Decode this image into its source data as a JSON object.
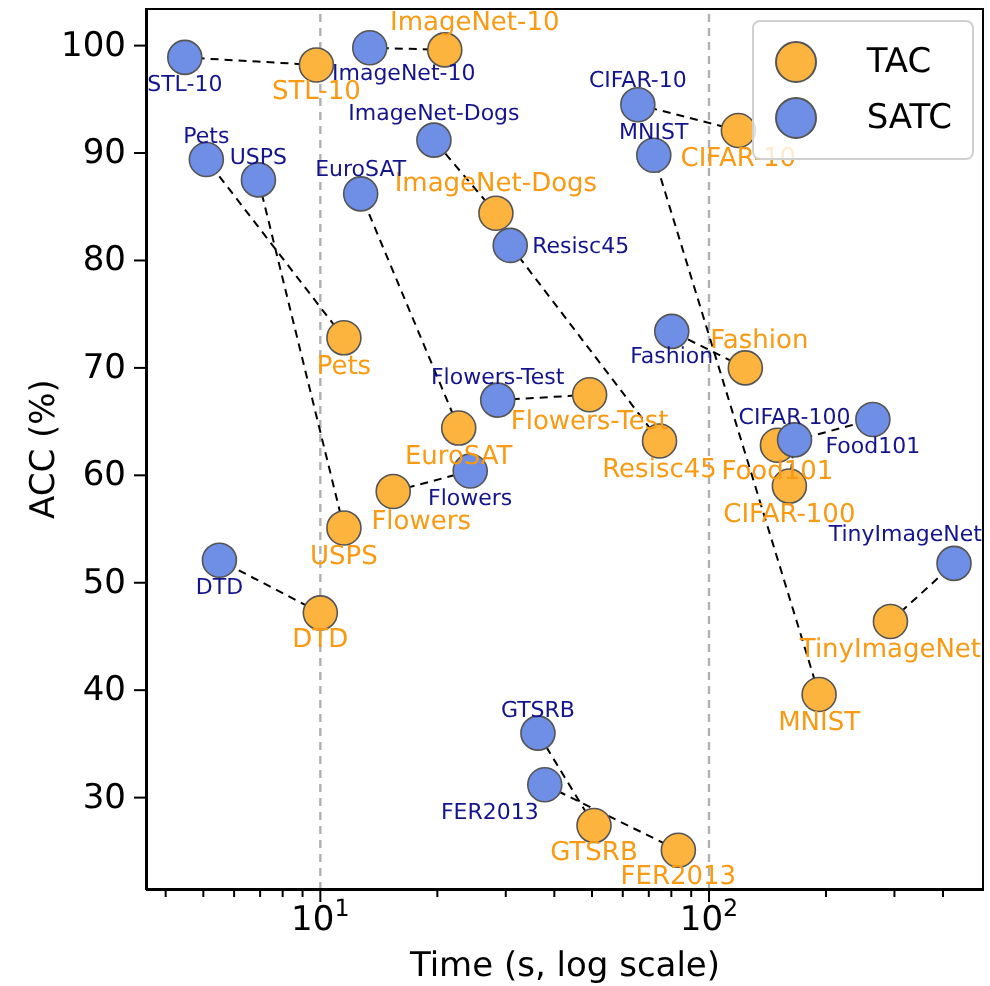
{
  "chart_data": {
    "type": "scatter",
    "xlabel": "Time (s, log scale)",
    "ylabel": "ACC (%)",
    "log": "x",
    "grid": false,
    "legend": "top right",
    "xlim": [
      3.56,
      510
    ],
    "ylim": [
      21.4,
      103.5
    ],
    "xticks": [
      {
        "value": 4,
        "label": null
      },
      {
        "value": 5,
        "label": null
      },
      {
        "value": 6,
        "label": null
      },
      {
        "value": 7,
        "label": null
      },
      {
        "value": 8,
        "label": null
      },
      {
        "value": 9,
        "label": null
      },
      {
        "value": 10,
        "label": "10$^{1}$"
      },
      {
        "value": 20,
        "label": null
      },
      {
        "value": 30,
        "label": null
      },
      {
        "value": 40,
        "label": null
      },
      {
        "value": 50,
        "label": null
      },
      {
        "value": 60,
        "label": null
      },
      {
        "value": 70,
        "label": null
      },
      {
        "value": 80,
        "label": null
      },
      {
        "value": 90,
        "label": null
      },
      {
        "value": 100,
        "label": "10$^{2}$"
      },
      {
        "value": 200,
        "label": null
      },
      {
        "value": 300,
        "label": null
      },
      {
        "value": 400,
        "label": null
      }
    ],
    "yticks": [
      30,
      40,
      50,
      60,
      70,
      80,
      90,
      100
    ],
    "ref_lines": [
      {
        "axis": "x",
        "value": 10,
        "color": "#b0b0b0",
        "line_style": "dashed"
      },
      {
        "axis": "x",
        "value": 100,
        "color": "#b0b0b0",
        "line_style": "dashed"
      }
    ],
    "series": [
      {
        "name": "TAC",
        "type": "scatter",
        "marker": "circle",
        "color": "#fdb43f",
        "x": [
          9.77,
          20.9,
          28.3,
          11.5,
          11.5,
          22.7,
          15.4,
          49.3,
          74.6,
          119,
          192,
          124,
          150,
          161,
          293,
          50.6,
          83.4,
          10
        ],
        "values": [
          98.2,
          99.6,
          84.4,
          72.8,
          55.1,
          64.4,
          58.5,
          67.5,
          63.2,
          92.1,
          39.6,
          70.0,
          62.8,
          59.0,
          46.4,
          27.4,
          25.1,
          47.2
        ]
      },
      {
        "name": "SATC",
        "type": "scatter",
        "marker": "circle",
        "color": "#6f8fe6",
        "x": [
          4.48,
          13.4,
          19.6,
          5.09,
          6.93,
          12.7,
          24.3,
          28.6,
          30.8,
          65.6,
          72.1,
          80.2,
          264,
          166,
          427,
          36.3,
          37.8,
          5.5
        ],
        "values": [
          98.9,
          99.8,
          91.2,
          89.4,
          87.5,
          86.2,
          60.4,
          67.0,
          81.4,
          94.5,
          89.8,
          73.4,
          65.2,
          63.3,
          51.8,
          36.0,
          31.2,
          52.1
        ]
      },
      {
        "type": "line",
        "color": "#000000",
        "line_style": "dashed",
        "x": [
          9.77,
          4.48
        ],
        "values": [
          98.2,
          98.9
        ]
      },
      {
        "type": "line",
        "color": "#000000",
        "line_style": "dashed",
        "x": [
          20.9,
          13.4
        ],
        "values": [
          99.6,
          99.8
        ]
      },
      {
        "type": "line",
        "color": "#000000",
        "line_style": "dashed",
        "x": [
          28.3,
          19.6
        ],
        "values": [
          84.4,
          91.2
        ]
      },
      {
        "type": "line",
        "color": "#000000",
        "line_style": "dashed",
        "x": [
          11.5,
          5.09
        ],
        "values": [
          72.8,
          89.4
        ]
      },
      {
        "type": "line",
        "color": "#000000",
        "line_style": "dashed",
        "x": [
          11.5,
          6.93
        ],
        "values": [
          55.1,
          87.5
        ]
      },
      {
        "type": "line",
        "color": "#000000",
        "line_style": "dashed",
        "x": [
          22.7,
          12.7
        ],
        "values": [
          64.4,
          86.2
        ]
      },
      {
        "type": "line",
        "color": "#000000",
        "line_style": "dashed",
        "x": [
          15.4,
          24.3
        ],
        "values": [
          58.5,
          60.4
        ]
      },
      {
        "type": "line",
        "color": "#000000",
        "line_style": "dashed",
        "x": [
          49.3,
          28.6
        ],
        "values": [
          67.5,
          67.0
        ]
      },
      {
        "type": "line",
        "color": "#000000",
        "line_style": "dashed",
        "x": [
          74.6,
          30.8
        ],
        "values": [
          63.2,
          81.4
        ]
      },
      {
        "type": "line",
        "color": "#000000",
        "line_style": "dashed",
        "x": [
          119,
          65.6
        ],
        "values": [
          92.1,
          94.5
        ]
      },
      {
        "type": "line",
        "color": "#000000",
        "line_style": "dashed",
        "x": [
          192,
          72.1
        ],
        "values": [
          39.6,
          89.8
        ]
      },
      {
        "type": "line",
        "color": "#000000",
        "line_style": "dashed",
        "x": [
          124,
          80.2
        ],
        "values": [
          70.0,
          73.4
        ]
      },
      {
        "type": "line",
        "color": "#000000",
        "line_style": "dashed",
        "x": [
          150,
          264
        ],
        "values": [
          62.8,
          65.2
        ]
      },
      {
        "type": "line",
        "color": "#000000",
        "line_style": "dashed",
        "x": [
          161,
          166
        ],
        "values": [
          59.0,
          63.3
        ]
      },
      {
        "type": "line",
        "color": "#000000",
        "line_style": "dashed",
        "x": [
          293,
          427
        ],
        "values": [
          46.4,
          51.8
        ]
      },
      {
        "type": "line",
        "color": "#000000",
        "line_style": "dashed",
        "x": [
          50.6,
          36.3
        ],
        "values": [
          27.4,
          36.0
        ]
      },
      {
        "type": "line",
        "color": "#000000",
        "line_style": "dashed",
        "x": [
          83.4,
          37.8
        ],
        "values": [
          25.1,
          31.2
        ]
      },
      {
        "type": "line",
        "color": "#000000",
        "line_style": "dashed",
        "x": [
          10,
          5.5
        ],
        "values": [
          47.2,
          52.1
        ]
      }
    ],
    "annotations": [
      {
        "text": "STL-10",
        "x": 9.77,
        "y": 98.2
      },
      {
        "text": "ImageNet-10",
        "x": 20.9,
        "y": 99.6
      },
      {
        "text": "ImageNet-Dogs",
        "x": 28.3,
        "y": 84.4
      },
      {
        "text": "Pets",
        "x": 11.5,
        "y": 72.8
      },
      {
        "text": "USPS",
        "x": 11.5,
        "y": 55.1
      },
      {
        "text": "EuroSAT",
        "x": 22.7,
        "y": 64.4
      },
      {
        "text": "Flowers",
        "x": 15.4,
        "y": 58.5
      },
      {
        "text": "Flowers-Test",
        "x": 49.3,
        "y": 67.5
      },
      {
        "text": "Resisc45",
        "x": 74.6,
        "y": 63.2
      },
      {
        "text": "CIFAR-10",
        "x": 119,
        "y": 92.1
      },
      {
        "text": "MNIST",
        "x": 192,
        "y": 39.6
      },
      {
        "text": "Fashion",
        "x": 124,
        "y": 70.0
      },
      {
        "text": "Food101",
        "x": 150,
        "y": 62.8
      },
      {
        "text": "CIFAR-100",
        "x": 161,
        "y": 59.0
      },
      {
        "text": "TinyImageNet",
        "x": 293,
        "y": 46.4
      },
      {
        "text": "GTSRB",
        "x": 50.6,
        "y": 27.4
      },
      {
        "text": "FER2013",
        "x": 83.4,
        "y": 25.1
      },
      {
        "text": "DTD",
        "x": 10,
        "y": 47.2
      },
      {
        "text": "STL-10",
        "x": 4.48,
        "y": 98.9
      },
      {
        "text": "ImageNet-10",
        "x": 13.4,
        "y": 99.8
      },
      {
        "text": "ImageNet-Dogs",
        "x": 19.6,
        "y": 91.2
      },
      {
        "text": "Pets",
        "x": 5.09,
        "y": 89.4
      },
      {
        "text": "USPS",
        "x": 6.93,
        "y": 87.5
      },
      {
        "text": "EuroSAT",
        "x": 12.7,
        "y": 86.2
      },
      {
        "text": "Flowers",
        "x": 24.3,
        "y": 60.4
      },
      {
        "text": "Flowers-Test",
        "x": 28.6,
        "y": 67.0
      },
      {
        "text": "Resisc45",
        "x": 30.8,
        "y": 81.4
      },
      {
        "text": "CIFAR-10",
        "x": 65.6,
        "y": 94.5
      },
      {
        "text": "MNIST",
        "x": 72.1,
        "y": 89.8
      },
      {
        "text": "Fashion",
        "x": 80.2,
        "y": 73.4
      },
      {
        "text": "Food101",
        "x": 264,
        "y": 65.2
      },
      {
        "text": "CIFAR-100",
        "x": 166,
        "y": 63.3
      },
      {
        "text": "TinyImageNet",
        "x": 427,
        "y": 51.8
      },
      {
        "text": "GTSRB",
        "x": 36.3,
        "y": 36.0
      },
      {
        "text": "FER2013",
        "x": 37.8,
        "y": 31.2
      },
      {
        "text": "DTD",
        "x": 5.5,
        "y": 52.1
      }
    ]
  }
}
